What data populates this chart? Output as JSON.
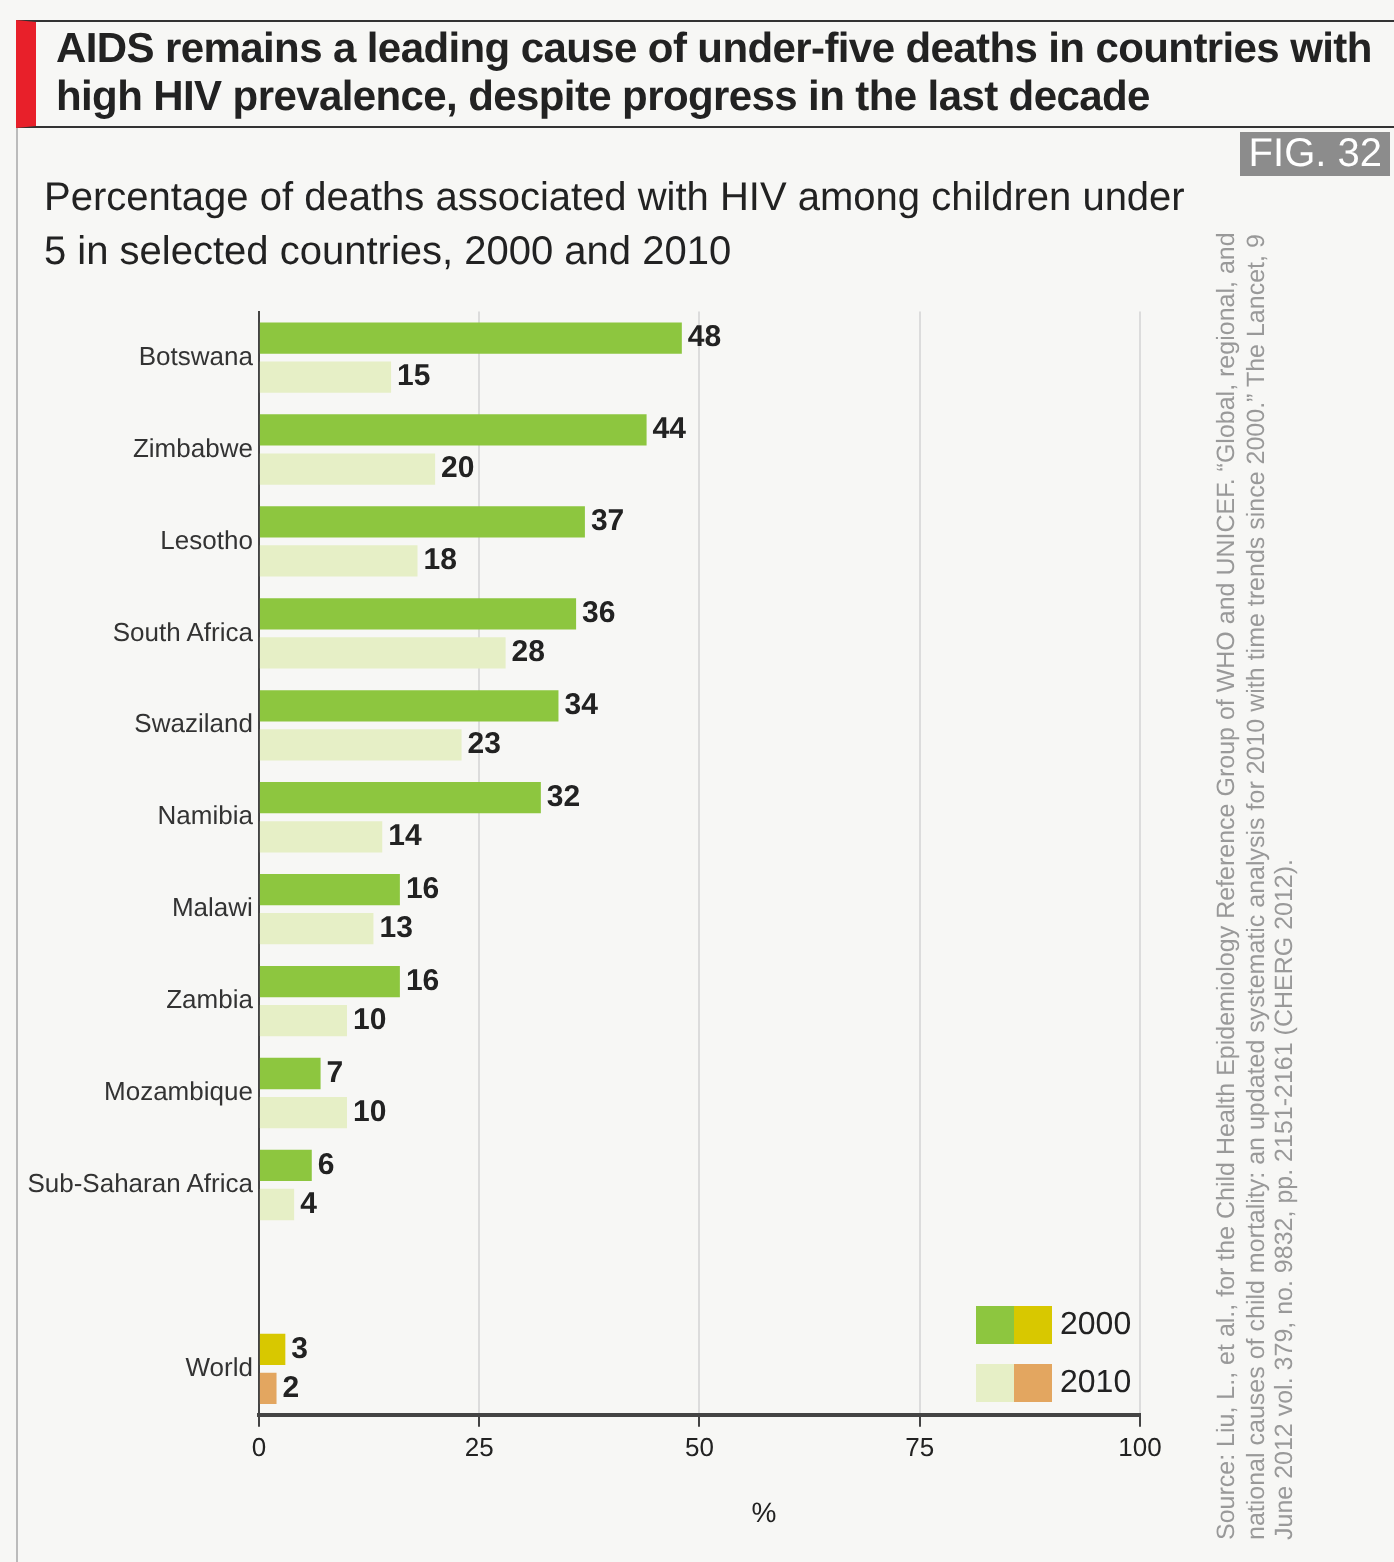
{
  "chart_data": {
    "type": "bar",
    "orientation": "horizontal",
    "title": "AIDS remains a leading cause of under-five deaths in countries with high HIV prevalence, despite progress in the last decade",
    "subtitle": "Percentage of deaths associated with HIV among children under 5 in selected countries, 2000 and 2010",
    "xlabel": "%",
    "categories": [
      "Botswana",
      "Zimbabwe",
      "Lesotho",
      "South Africa",
      "Swaziland",
      "Namibia",
      "Malawi",
      "Zambia",
      "Mozambique",
      "Sub-Saharan Africa",
      null,
      "World"
    ],
    "series": [
      {
        "name": "2000",
        "color": "#8dc63f",
        "colors": [
          "#8dc63f",
          "#8dc63f",
          "#8dc63f",
          "#8dc63f",
          "#8dc63f",
          "#8dc63f",
          "#8dc63f",
          "#8dc63f",
          "#8dc63f",
          "#8dc63f",
          "#8dc63f",
          "#d8c800"
        ],
        "values": [
          48,
          44,
          37,
          36,
          34,
          32,
          16,
          16,
          7,
          6,
          null,
          3
        ]
      },
      {
        "name": "2010",
        "color": "#e6efc6",
        "colors": [
          "#e6efc6",
          "#e6efc6",
          "#e6efc6",
          "#e6efc6",
          "#e6efc6",
          "#e6efc6",
          "#e6efc6",
          "#e6efc6",
          "#e6efc6",
          "#e6efc6",
          "#e6efc6",
          "#e3a660"
        ],
        "values": [
          15,
          20,
          18,
          28,
          23,
          14,
          13,
          10,
          10,
          4,
          null,
          2
        ]
      }
    ],
    "xlim": [
      0,
      100
    ],
    "xticks": [
      0,
      25,
      50,
      75,
      100
    ],
    "grid": "x",
    "legend": "bottom right",
    "data_labels": true,
    "annotations": [
      "FIG. 32",
      "Source: Liu, L., et al., for the Child Health Epidemiology Reference Group of WHO and UNICEF. “Global, regional, and national causes of child mortality: an updated systematic analysis for 2010 with time trends since 2000.” The Lancet, 9 June 2012  vol. 379, no. 9832, pp. 2151-2161 (CHERG 2012)."
    ]
  }
}
